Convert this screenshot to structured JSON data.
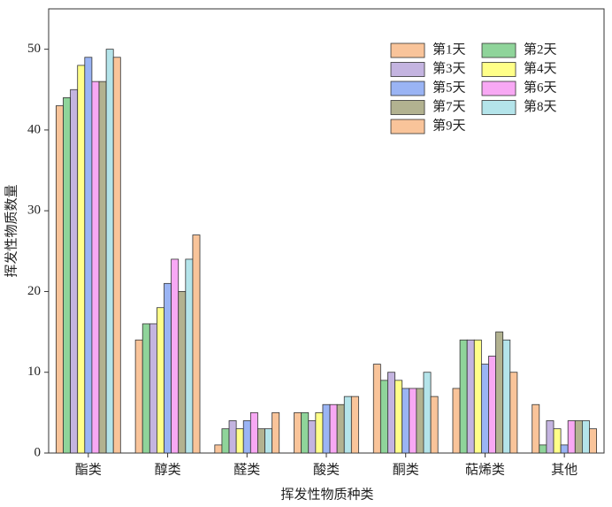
{
  "chart_data": {
    "type": "bar",
    "x_label": "挥发性物质种类",
    "y_label": "挥发性物质数量",
    "categories": [
      "酯类",
      "醇类",
      "醛类",
      "酸类",
      "酮类",
      "萜烯类",
      "其他"
    ],
    "series": [
      {
        "name": "第1天",
        "color": "#f9c49a",
        "values": [
          43,
          14,
          1,
          5,
          11,
          8,
          6
        ]
      },
      {
        "name": "第2天",
        "color": "#8fd49a",
        "values": [
          44,
          16,
          3,
          5,
          9,
          14,
          1
        ]
      },
      {
        "name": "第3天",
        "color": "#c4b4e0",
        "values": [
          45,
          16,
          4,
          4,
          10,
          14,
          4
        ]
      },
      {
        "name": "第4天",
        "color": "#ffff88",
        "values": [
          48,
          18,
          3,
          5,
          9,
          14,
          3
        ]
      },
      {
        "name": "第5天",
        "color": "#9ab4f4",
        "values": [
          49,
          21,
          4,
          6,
          8,
          11,
          1
        ]
      },
      {
        "name": "第6天",
        "color": "#f8a8f4",
        "values": [
          46,
          24,
          5,
          6,
          8,
          12,
          4
        ]
      },
      {
        "name": "第7天",
        "color": "#b2b290",
        "values": [
          46,
          20,
          3,
          6,
          8,
          15,
          4
        ]
      },
      {
        "name": "第8天",
        "color": "#b4e4ea",
        "values": [
          50,
          24,
          3,
          7,
          10,
          14,
          4
        ]
      },
      {
        "name": "第9天",
        "color": "#f9c49a",
        "values": [
          49,
          27,
          5,
          7,
          7,
          10,
          3
        ]
      }
    ],
    "ylim": [
      0,
      55
    ],
    "yticks": [
      0,
      10,
      20,
      30,
      40,
      50
    ]
  }
}
